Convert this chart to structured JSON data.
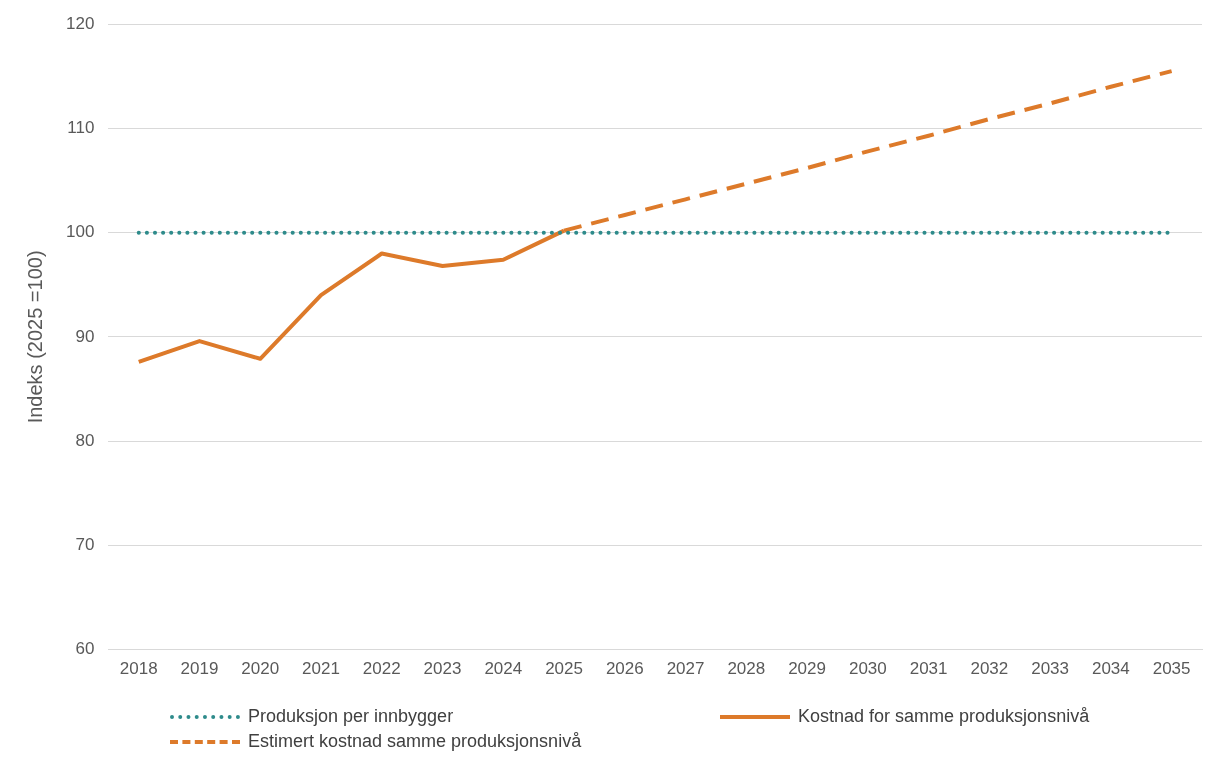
{
  "chart_data": {
    "type": "line",
    "ylabel": "Indeks (2025 =100)",
    "categories": [
      "2018",
      "2019",
      "2020",
      "2021",
      "2022",
      "2023",
      "2024",
      "2025",
      "2026",
      "2027",
      "2028",
      "2029",
      "2030",
      "2031",
      "2032",
      "2033",
      "2034",
      "2035"
    ],
    "series": [
      {
        "name": "Produksjon per innbygger",
        "color": "#2e8b8b",
        "line_style": "dotted",
        "values": [
          100,
          100,
          100,
          100,
          100,
          100,
          100,
          100,
          100,
          100,
          100,
          100,
          100,
          100,
          100,
          100,
          100,
          100
        ]
      },
      {
        "name": "Kostnad for samme produksjonsnivå",
        "color": "#dd7a2a",
        "line_style": "solid",
        "values": [
          87.6,
          89.6,
          87.9,
          94.0,
          98.0,
          96.8,
          97.4,
          100.2,
          null,
          null,
          null,
          null,
          null,
          null,
          null,
          null,
          null,
          null
        ]
      },
      {
        "name": "Estimert kostnad samme produksjonsnivå",
        "color": "#dd7a2a",
        "line_style": "dashed",
        "values": [
          null,
          null,
          null,
          null,
          null,
          null,
          null,
          100.2,
          101.7,
          103.2,
          104.7,
          106.2,
          107.8,
          109.3,
          110.9,
          112.4,
          114.0,
          115.5
        ]
      }
    ],
    "ylim": [
      60,
      120
    ],
    "yticks": [
      60,
      70,
      80,
      90,
      100,
      110,
      120
    ],
    "grid": "y",
    "legend": "bottom",
    "marker": "none"
  }
}
